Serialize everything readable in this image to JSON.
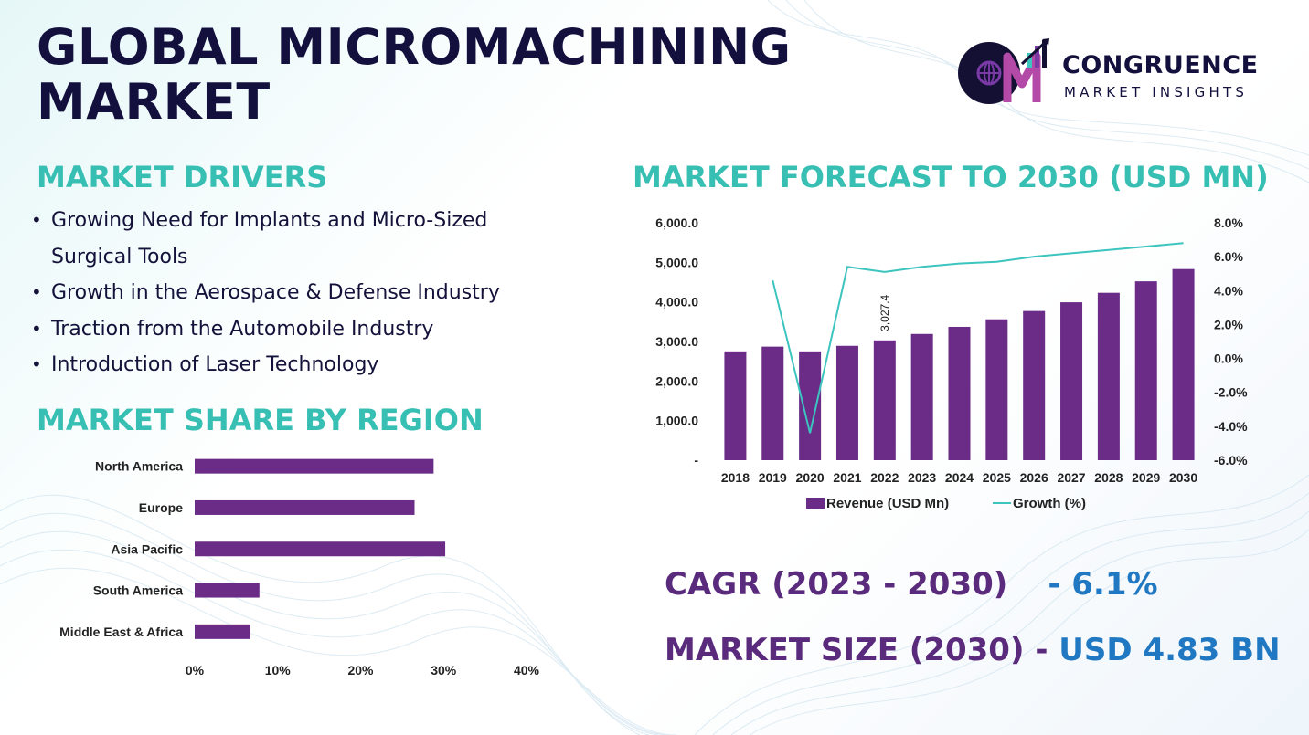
{
  "header": {
    "title_line1": "GLOBAL MICROMACHINING",
    "title_line2": "MARKET"
  },
  "logo": {
    "name_line1": "CONGRUENCE",
    "name_line2": "MARKET INSIGHTS",
    "mark": "CM"
  },
  "drivers": {
    "heading": "MARKET DRIVERS",
    "items": [
      "Growing Need for Implants and Micro-Sized",
      "Surgical Tools",
      "Growth in the Aerospace & Defense Industry",
      "Traction from the Automobile Industry",
      "Introduction of Laser Technology"
    ]
  },
  "region": {
    "heading": "MARKET SHARE BY REGION"
  },
  "forecast": {
    "heading": "MARKET FORECAST TO 2030 (USD MN)"
  },
  "stats": {
    "cagr_label": "CAGR (2023 - 2030)",
    "cagr_value": "- 6.1%",
    "size_label": "MARKET SIZE (2030) -",
    "size_value": "USD 4.83 BN"
  },
  "colors": {
    "bar": "#6a2c86",
    "line": "#3cc4bf",
    "heading": "#38bfb3",
    "title": "#13103d",
    "stat_label": "#5a2b7d",
    "stat_value": "#1f78c1"
  },
  "chart_data": [
    {
      "type": "bar",
      "orientation": "horizontal",
      "title": "MARKET SHARE BY REGION",
      "categories": [
        "North America",
        "Europe",
        "Asia Pacific",
        "South America",
        "Middle East & Africa"
      ],
      "values": [
        28.8,
        26.5,
        30.2,
        7.8,
        6.7
      ],
      "xlim": [
        0,
        40
      ],
      "ticks": [
        0,
        10,
        20,
        30,
        40
      ],
      "tick_labels": [
        "0%",
        "10%",
        "20%",
        "30%",
        "40%"
      ]
    },
    {
      "type": "bar+line",
      "title": "MARKET FORECAST TO 2030 (USD MN)",
      "categories": [
        "2018",
        "2019",
        "2020",
        "2021",
        "2022",
        "2023",
        "2024",
        "2025",
        "2026",
        "2027",
        "2028",
        "2029",
        "2030"
      ],
      "series": [
        {
          "name": "Revenue (USD Mn)",
          "type": "bar",
          "axis": "left",
          "values": [
            2750,
            2870,
            2750,
            2890,
            3027.4,
            3190,
            3370,
            3560,
            3770,
            3990,
            4230,
            4520,
            4830
          ]
        },
        {
          "name": "Growth (%)",
          "type": "line",
          "axis": "right",
          "values": [
            null,
            4.6,
            -4.4,
            5.4,
            5.1,
            5.4,
            5.6,
            5.7,
            6.0,
            6.2,
            6.4,
            6.6,
            6.8
          ]
        }
      ],
      "data_labels": [
        {
          "index": 4,
          "text": "3,027.4"
        }
      ],
      "ylim_left": [
        0,
        6000
      ],
      "yticks_left": [
        0,
        1000,
        2000,
        3000,
        4000,
        5000,
        6000
      ],
      "ytick_labels_left": [
        "-",
        "1,000.0",
        "2,000.0",
        "3,000.0",
        "4,000.0",
        "5,000.0",
        "6,000.0"
      ],
      "ylim_right": [
        -6,
        8
      ],
      "yticks_right": [
        -6,
        -4,
        -2,
        0,
        2,
        4,
        6,
        8
      ],
      "ytick_labels_right": [
        "-6.0%",
        "-4.0%",
        "-2.0%",
        "0.0%",
        "2.0%",
        "4.0%",
        "6.0%",
        "8.0%"
      ],
      "legend": "bottom"
    }
  ]
}
